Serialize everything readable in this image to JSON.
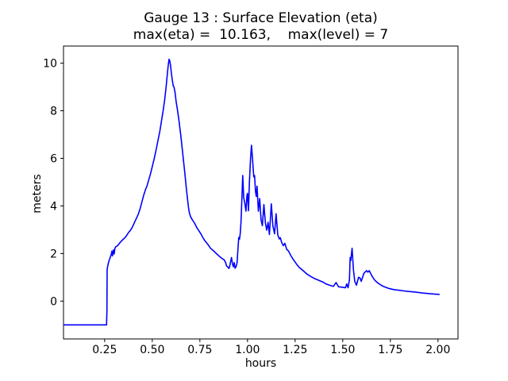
{
  "chart_data": {
    "type": "line",
    "title": "Gauge 13 : Surface Elevation (eta)",
    "subtitle": "max(eta) =  10.163,    max(level) = 7",
    "xlabel": "hours",
    "ylabel": "meters",
    "xlim": [
      0.034,
      2.105
    ],
    "ylim": [
      -1.59,
      10.72
    ],
    "grid": false,
    "legend_position": "none",
    "axes_color": "#000000",
    "background": "#ffffff",
    "xticks": {
      "values": [
        0.25,
        0.5,
        0.75,
        1.0,
        1.25,
        1.5,
        1.75,
        2.0
      ],
      "labels": [
        "0.25",
        "0.50",
        "0.75",
        "1.00",
        "1.25",
        "1.50",
        "1.75",
        "2.00"
      ]
    },
    "yticks": {
      "values": [
        0,
        2,
        4,
        6,
        8,
        10
      ],
      "labels": [
        "0",
        "2",
        "4",
        "6",
        "8",
        "10"
      ]
    },
    "stats": {
      "max_eta": 10.163,
      "max_level": 7,
      "gauge": 13
    },
    "series": [
      {
        "name": "eta",
        "color": "#0000ff",
        "line_width": 1.6,
        "points": [
          [
            0.035,
            -1.0
          ],
          [
            0.1,
            -1.0
          ],
          [
            0.18,
            -1.0
          ],
          [
            0.26,
            -1.0
          ],
          [
            0.262,
            -0.4
          ],
          [
            0.263,
            1.33
          ],
          [
            0.268,
            1.55
          ],
          [
            0.274,
            1.72
          ],
          [
            0.28,
            1.85
          ],
          [
            0.285,
            1.97
          ],
          [
            0.288,
            2.1
          ],
          [
            0.291,
            1.9
          ],
          [
            0.296,
            2.15
          ],
          [
            0.3,
            1.98
          ],
          [
            0.304,
            2.22
          ],
          [
            0.308,
            2.28
          ],
          [
            0.312,
            2.3
          ],
          [
            0.318,
            2.33
          ],
          [
            0.325,
            2.4
          ],
          [
            0.335,
            2.5
          ],
          [
            0.345,
            2.58
          ],
          [
            0.355,
            2.65
          ],
          [
            0.365,
            2.75
          ],
          [
            0.375,
            2.88
          ],
          [
            0.385,
            2.97
          ],
          [
            0.395,
            3.1
          ],
          [
            0.405,
            3.28
          ],
          [
            0.415,
            3.45
          ],
          [
            0.425,
            3.62
          ],
          [
            0.435,
            3.85
          ],
          [
            0.445,
            4.15
          ],
          [
            0.455,
            4.45
          ],
          [
            0.465,
            4.7
          ],
          [
            0.472,
            4.83
          ],
          [
            0.48,
            5.05
          ],
          [
            0.49,
            5.33
          ],
          [
            0.5,
            5.65
          ],
          [
            0.51,
            5.98
          ],
          [
            0.52,
            6.35
          ],
          [
            0.53,
            6.75
          ],
          [
            0.54,
            7.15
          ],
          [
            0.55,
            7.65
          ],
          [
            0.558,
            8.05
          ],
          [
            0.565,
            8.45
          ],
          [
            0.572,
            8.95
          ],
          [
            0.578,
            9.45
          ],
          [
            0.583,
            9.85
          ],
          [
            0.588,
            10.163
          ],
          [
            0.592,
            10.1
          ],
          [
            0.596,
            9.9
          ],
          [
            0.6,
            9.6
          ],
          [
            0.605,
            9.3
          ],
          [
            0.61,
            9.05
          ],
          [
            0.614,
            9.0
          ],
          [
            0.62,
            8.75
          ],
          [
            0.625,
            8.4
          ],
          [
            0.632,
            8.05
          ],
          [
            0.64,
            7.6
          ],
          [
            0.65,
            6.95
          ],
          [
            0.66,
            6.2
          ],
          [
            0.67,
            5.45
          ],
          [
            0.68,
            4.65
          ],
          [
            0.69,
            3.95
          ],
          [
            0.695,
            3.7
          ],
          [
            0.701,
            3.55
          ],
          [
            0.71,
            3.42
          ],
          [
            0.722,
            3.28
          ],
          [
            0.733,
            3.1
          ],
          [
            0.743,
            2.98
          ],
          [
            0.755,
            2.83
          ],
          [
            0.765,
            2.68
          ],
          [
            0.775,
            2.55
          ],
          [
            0.785,
            2.45
          ],
          [
            0.795,
            2.35
          ],
          [
            0.806,
            2.22
          ],
          [
            0.816,
            2.15
          ],
          [
            0.826,
            2.08
          ],
          [
            0.836,
            2.0
          ],
          [
            0.847,
            1.92
          ],
          [
            0.857,
            1.85
          ],
          [
            0.868,
            1.78
          ],
          [
            0.878,
            1.73
          ],
          [
            0.885,
            1.62
          ],
          [
            0.89,
            1.48
          ],
          [
            0.896,
            1.44
          ],
          [
            0.902,
            1.37
          ],
          [
            0.906,
            1.44
          ],
          [
            0.911,
            1.65
          ],
          [
            0.916,
            1.83
          ],
          [
            0.921,
            1.56
          ],
          [
            0.926,
            1.44
          ],
          [
            0.93,
            1.62
          ],
          [
            0.935,
            1.38
          ],
          [
            0.94,
            1.45
          ],
          [
            0.945,
            1.6
          ],
          [
            0.95,
            2.2
          ],
          [
            0.954,
            2.67
          ],
          [
            0.958,
            2.6
          ],
          [
            0.962,
            2.85
          ],
          [
            0.966,
            3.35
          ],
          [
            0.97,
            4.2
          ],
          [
            0.975,
            5.28
          ],
          [
            0.98,
            4.35
          ],
          [
            0.986,
            4.11
          ],
          [
            0.992,
            3.78
          ],
          [
            0.997,
            4.44
          ],
          [
            1.0,
            4.53
          ],
          [
            1.005,
            3.8
          ],
          [
            1.01,
            5.0
          ],
          [
            1.016,
            6.0
          ],
          [
            1.021,
            6.55
          ],
          [
            1.025,
            6.11
          ],
          [
            1.029,
            5.67
          ],
          [
            1.033,
            5.22
          ],
          [
            1.037,
            5.28
          ],
          [
            1.042,
            4.61
          ],
          [
            1.046,
            4.4
          ],
          [
            1.05,
            4.83
          ],
          [
            1.057,
            3.78
          ],
          [
            1.064,
            4.31
          ],
          [
            1.071,
            3.42
          ],
          [
            1.078,
            3.17
          ],
          [
            1.086,
            4.06
          ],
          [
            1.094,
            3.28
          ],
          [
            1.101,
            2.98
          ],
          [
            1.108,
            3.31
          ],
          [
            1.115,
            2.8
          ],
          [
            1.125,
            4.09
          ],
          [
            1.133,
            3.17
          ],
          [
            1.142,
            2.83
          ],
          [
            1.15,
            3.67
          ],
          [
            1.159,
            2.78
          ],
          [
            1.167,
            2.61
          ],
          [
            1.172,
            2.67
          ],
          [
            1.18,
            2.45
          ],
          [
            1.188,
            2.33
          ],
          [
            1.196,
            2.43
          ],
          [
            1.206,
            2.17
          ],
          [
            1.215,
            2.11
          ],
          [
            1.229,
            1.89
          ],
          [
            1.243,
            1.72
          ],
          [
            1.257,
            1.56
          ],
          [
            1.271,
            1.42
          ],
          [
            1.292,
            1.28
          ],
          [
            1.313,
            1.13
          ],
          [
            1.333,
            1.03
          ],
          [
            1.354,
            0.94
          ],
          [
            1.375,
            0.87
          ],
          [
            1.396,
            0.8
          ],
          [
            1.41,
            0.73
          ],
          [
            1.43,
            0.67
          ],
          [
            1.451,
            0.62
          ],
          [
            1.465,
            0.78
          ],
          [
            1.478,
            0.6
          ],
          [
            1.5,
            0.58
          ],
          [
            1.514,
            0.56
          ],
          [
            1.521,
            0.72
          ],
          [
            1.528,
            0.56
          ],
          [
            1.535,
            0.9
          ],
          [
            1.539,
            1.83
          ],
          [
            1.542,
            1.7
          ],
          [
            1.549,
            2.22
          ],
          [
            1.556,
            1.33
          ],
          [
            1.563,
            0.83
          ],
          [
            1.572,
            0.67
          ],
          [
            1.583,
            1.0
          ],
          [
            1.59,
            0.98
          ],
          [
            1.597,
            0.83
          ],
          [
            1.611,
            1.17
          ],
          [
            1.625,
            1.28
          ],
          [
            1.632,
            1.22
          ],
          [
            1.639,
            1.28
          ],
          [
            1.653,
            1.06
          ],
          [
            1.667,
            0.89
          ],
          [
            1.681,
            0.78
          ],
          [
            1.701,
            0.67
          ],
          [
            1.715,
            0.61
          ],
          [
            1.743,
            0.53
          ],
          [
            1.77,
            0.48
          ],
          [
            1.8,
            0.45
          ],
          [
            1.84,
            0.41
          ],
          [
            1.88,
            0.38
          ],
          [
            1.92,
            0.34
          ],
          [
            1.96,
            0.31
          ],
          [
            2.006,
            0.28
          ]
        ]
      }
    ]
  }
}
